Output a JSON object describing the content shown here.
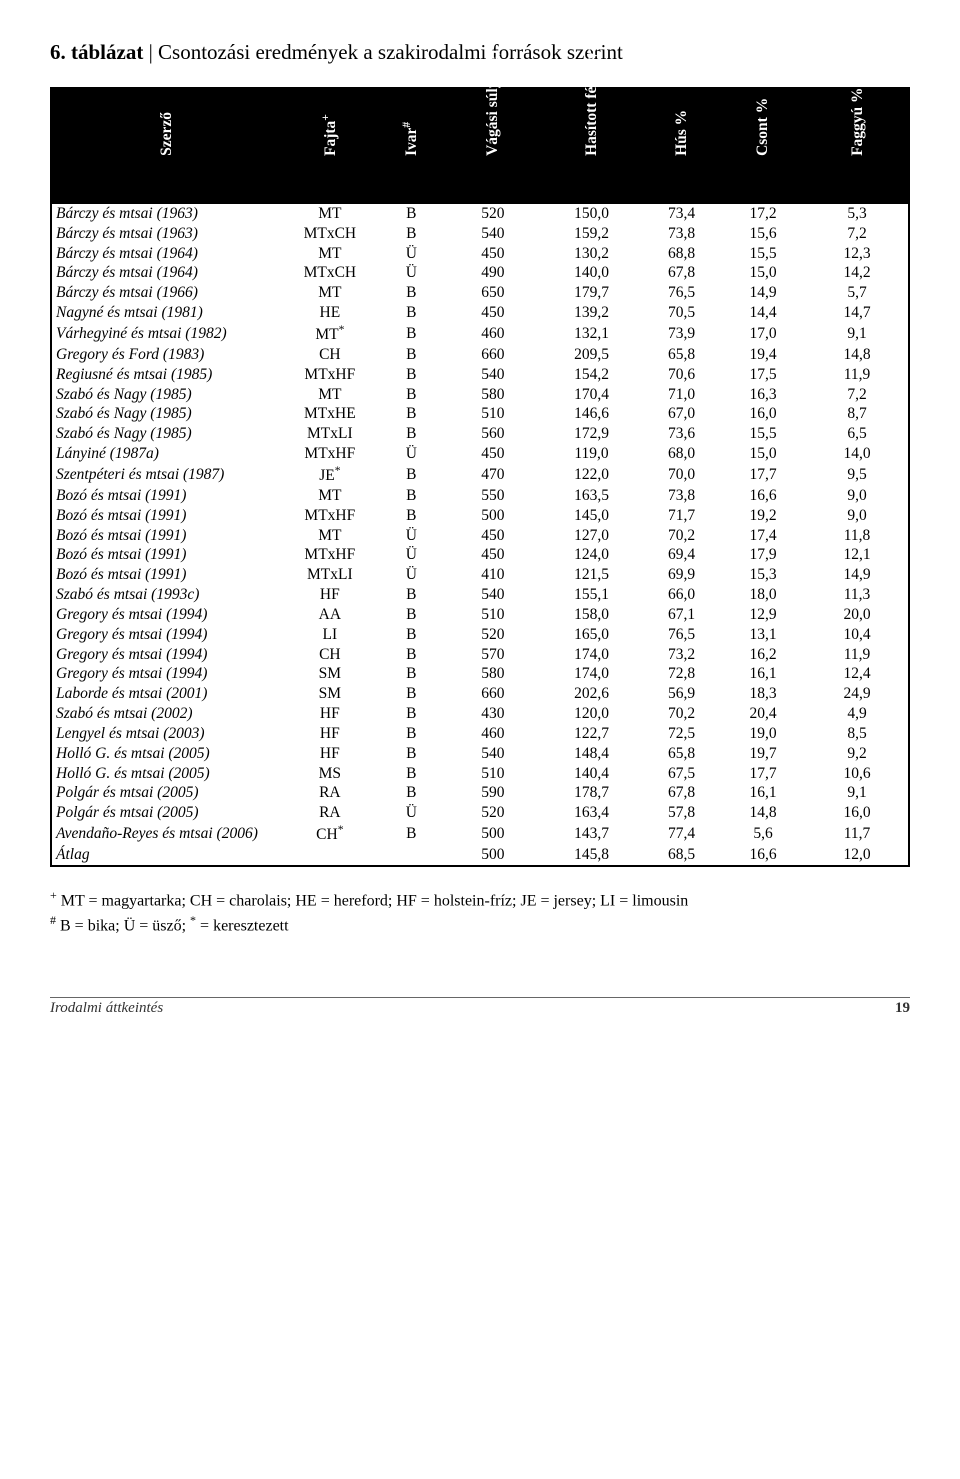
{
  "title_label": "6. táblázat",
  "title_sep": " | ",
  "title_text": "Csontozási eredmények a szakirodalmi források szerint",
  "headers": [
    "Szerző",
    "Fajta",
    "Ivar",
    "Vágási súly (kg)",
    "Hasított fél súlya (kg)",
    "Hús %",
    "Csont %",
    "Faggyú %"
  ],
  "header_sups": [
    "",
    "+",
    "#",
    "",
    "",
    "",
    "",
    ""
  ],
  "rows": [
    {
      "a": "Bárczy és mtsai (1963)",
      "f": "MT",
      "i": "B",
      "v": "520",
      "h": "150,0",
      "hu": "73,4",
      "cs": "17,2",
      "fa": "5,3"
    },
    {
      "a": "Bárczy és mtsai (1963)",
      "f": "MTxCH",
      "i": "B",
      "v": "540",
      "h": "159,2",
      "hu": "73,8",
      "cs": "15,6",
      "fa": "7,2"
    },
    {
      "a": "Bárczy és mtsai (1964)",
      "f": "MT",
      "i": "Ü",
      "v": "450",
      "h": "130,2",
      "hu": "68,8",
      "cs": "15,5",
      "fa": "12,3"
    },
    {
      "a": "Bárczy és mtsai (1964)",
      "f": "MTxCH",
      "i": "Ü",
      "v": "490",
      "h": "140,0",
      "hu": "67,8",
      "cs": "15,0",
      "fa": "14,2"
    },
    {
      "a": "Bárczy és mtsai (1966)",
      "f": "MT",
      "i": "B",
      "v": "650",
      "h": "179,7",
      "hu": "76,5",
      "cs": "14,9",
      "fa": "5,7"
    },
    {
      "a": "Nagyné és mtsai (1981)",
      "f": "HE",
      "i": "B",
      "v": "450",
      "h": "139,2",
      "hu": "70,5",
      "cs": "14,4",
      "fa": "14,7"
    },
    {
      "a": "Várhegyiné és mtsai (1982)",
      "f": "MT",
      "fsup": "*",
      "i": "B",
      "v": "460",
      "h": "132,1",
      "hu": "73,9",
      "cs": "17,0",
      "fa": "9,1"
    },
    {
      "a": "Gregory és Ford (1983)",
      "f": "CH",
      "i": "B",
      "v": "660",
      "h": "209,5",
      "hu": "65,8",
      "cs": "19,4",
      "fa": "14,8"
    },
    {
      "a": "Regiusné és mtsai (1985)",
      "f": "MTxHF",
      "i": "B",
      "v": "540",
      "h": "154,2",
      "hu": "70,6",
      "cs": "17,5",
      "fa": "11,9"
    },
    {
      "a": "Szabó és Nagy (1985)",
      "f": "MT",
      "i": "B",
      "v": "580",
      "h": "170,4",
      "hu": "71,0",
      "cs": "16,3",
      "fa": "7,2"
    },
    {
      "a": "Szabó és Nagy (1985)",
      "f": "MTxHE",
      "i": "B",
      "v": "510",
      "h": "146,6",
      "hu": "67,0",
      "cs": "16,0",
      "fa": "8,7"
    },
    {
      "a": "Szabó és Nagy (1985)",
      "f": "MTxLI",
      "i": "B",
      "v": "560",
      "h": "172,9",
      "hu": "73,6",
      "cs": "15,5",
      "fa": "6,5"
    },
    {
      "a": "Lányiné (1987a)",
      "f": "MTxHF",
      "i": "Ü",
      "v": "450",
      "h": "119,0",
      "hu": "68,0",
      "cs": "15,0",
      "fa": "14,0"
    },
    {
      "a": "Szentpéteri és mtsai (1987)",
      "f": "JE",
      "fsup": "*",
      "i": "B",
      "v": "470",
      "h": "122,0",
      "hu": "70,0",
      "cs": "17,7",
      "fa": "9,5"
    },
    {
      "a": "Bozó és mtsai (1991)",
      "f": "MT",
      "i": "B",
      "v": "550",
      "h": "163,5",
      "hu": "73,8",
      "cs": "16,6",
      "fa": "9,0"
    },
    {
      "a": "Bozó és mtsai (1991)",
      "f": "MTxHF",
      "i": "B",
      "v": "500",
      "h": "145,0",
      "hu": "71,7",
      "cs": "19,2",
      "fa": "9,0"
    },
    {
      "a": "Bozó és mtsai (1991)",
      "f": "MT",
      "i": "Ü",
      "v": "450",
      "h": "127,0",
      "hu": "70,2",
      "cs": "17,4",
      "fa": "11,8"
    },
    {
      "a": "Bozó és mtsai (1991)",
      "f": "MTxHF",
      "i": "Ü",
      "v": "450",
      "h": "124,0",
      "hu": "69,4",
      "cs": "17,9",
      "fa": "12,1"
    },
    {
      "a": "Bozó és mtsai (1991)",
      "f": "MTxLI",
      "i": "Ü",
      "v": "410",
      "h": "121,5",
      "hu": "69,9",
      "cs": "15,3",
      "fa": "14,9"
    },
    {
      "a": "Szabó és mtsai (1993c)",
      "f": "HF",
      "i": "B",
      "v": "540",
      "h": "155,1",
      "hu": "66,0",
      "cs": "18,0",
      "fa": "11,3"
    },
    {
      "a": "Gregory és mtsai (1994)",
      "f": "AA",
      "i": "B",
      "v": "510",
      "h": "158,0",
      "hu": "67,1",
      "cs": "12,9",
      "fa": "20,0"
    },
    {
      "a": "Gregory és mtsai (1994)",
      "f": "LI",
      "i": "B",
      "v": "520",
      "h": "165,0",
      "hu": "76,5",
      "cs": "13,1",
      "fa": "10,4"
    },
    {
      "a": "Gregory és mtsai (1994)",
      "f": "CH",
      "i": "B",
      "v": "570",
      "h": "174,0",
      "hu": "73,2",
      "cs": "16,2",
      "fa": "11,9"
    },
    {
      "a": "Gregory és mtsai (1994)",
      "f": "SM",
      "i": "B",
      "v": "580",
      "h": "174,0",
      "hu": "72,8",
      "cs": "16,1",
      "fa": "12,4"
    },
    {
      "a": "Laborde és mtsai (2001)",
      "f": "SM",
      "i": "B",
      "v": "660",
      "h": "202,6",
      "hu": "56,9",
      "cs": "18,3",
      "fa": "24,9"
    },
    {
      "a": "Szabó és mtsai (2002)",
      "f": "HF",
      "i": "B",
      "v": "430",
      "h": "120,0",
      "hu": "70,2",
      "cs": "20,4",
      "fa": "4,9"
    },
    {
      "a": "Lengyel és mtsai (2003)",
      "f": "HF",
      "i": "B",
      "v": "460",
      "h": "122,7",
      "hu": "72,5",
      "cs": "19,0",
      "fa": "8,5"
    },
    {
      "a": "Holló G. és mtsai (2005)",
      "f": "HF",
      "i": "B",
      "v": "540",
      "h": "148,4",
      "hu": "65,8",
      "cs": "19,7",
      "fa": "9,2"
    },
    {
      "a": "Holló G. és mtsai (2005)",
      "f": "MS",
      "i": "B",
      "v": "510",
      "h": "140,4",
      "hu": "67,5",
      "cs": "17,7",
      "fa": "10,6"
    },
    {
      "a": "Polgár és mtsai (2005)",
      "f": "RA",
      "i": "B",
      "v": "590",
      "h": "178,7",
      "hu": "67,8",
      "cs": "16,1",
      "fa": "9,1"
    },
    {
      "a": "Polgár és mtsai (2005)",
      "f": "RA",
      "i": "Ü",
      "v": "520",
      "h": "163,4",
      "hu": "57,8",
      "cs": "14,8",
      "fa": "16,0"
    },
    {
      "a": "Avendaño-Reyes és mtsai (2006)",
      "f": "CH",
      "fsup": "*",
      "i": "B",
      "v": "500",
      "h": "143,7",
      "hu": "77,4",
      "cs": "5,6",
      "fa": "11,7"
    }
  ],
  "avg_row": {
    "a": "Átlag",
    "f": "",
    "i": "",
    "v": "500",
    "h": "145,8",
    "hu": "68,5",
    "cs": "16,6",
    "fa": "12,0"
  },
  "note1_sup": "+",
  "note1": " MT = magyartarka; CH = charolais; HE = hereford; HF = holstein-fríz; JE = jersey; LI = limousin",
  "note2_sup": "#",
  "note2_a": " B = bika; Ü = üsző; ",
  "note2_starsup": "*",
  "note2_b": " = keresztezett",
  "footer_section": "Irodalmi áttkeintés",
  "footer_page": "19"
}
